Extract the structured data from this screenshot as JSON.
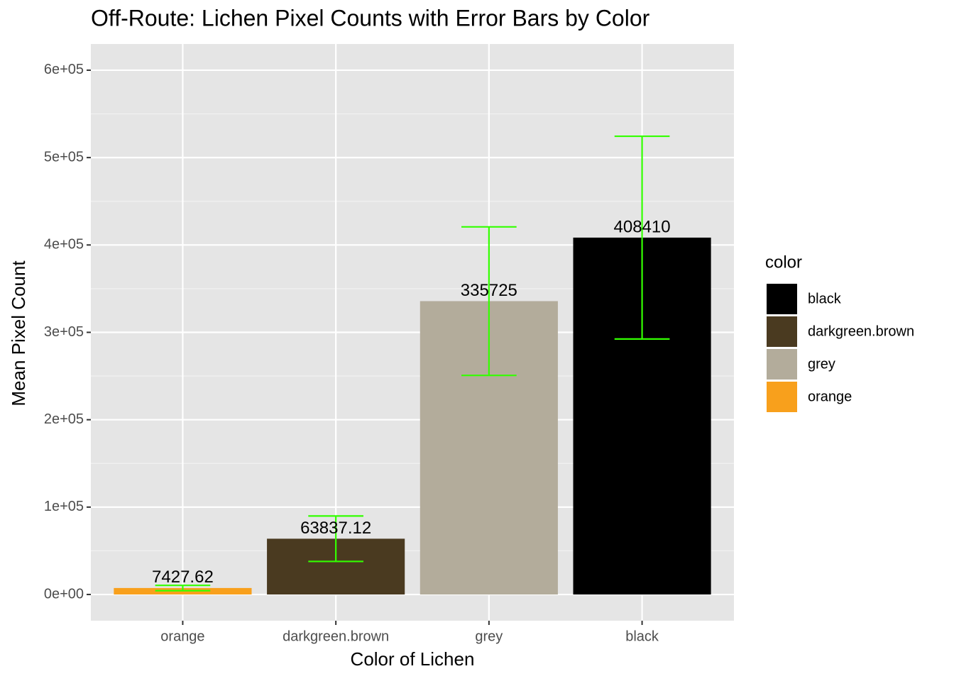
{
  "chart_data": {
    "type": "bar",
    "title": "Off-Route: Lichen Pixel Counts with Error Bars by Color",
    "x_label": "Color of Lichen",
    "y_label": "Mean Pixel Count",
    "categories": [
      "orange",
      "darkgreen.brown",
      "grey",
      "black"
    ],
    "values": [
      7427.62,
      63837.12,
      335725,
      408410
    ],
    "errors": [
      3000,
      26000,
      85000,
      116000
    ],
    "colors": [
      "#f8a01c",
      "#4a3a20",
      "#b3ac9b",
      "#000000"
    ],
    "error_color": "#33ff00",
    "ylim": [
      -30000,
      630000
    ],
    "yticks": [
      {
        "value": 0,
        "label": "0e+00"
      },
      {
        "value": 100000,
        "label": "1e+05"
      },
      {
        "value": 200000,
        "label": "2e+05"
      },
      {
        "value": 300000,
        "label": "3e+05"
      },
      {
        "value": 400000,
        "label": "4e+05"
      },
      {
        "value": 500000,
        "label": "5e+05"
      },
      {
        "value": 600000,
        "label": "6e+05"
      }
    ],
    "y_minor_ticks": [
      50000,
      150000,
      250000,
      350000,
      450000,
      550000
    ],
    "grid": true,
    "legend": {
      "title": "color",
      "labels": [
        "black",
        "darkgreen.brown",
        "grey",
        "orange"
      ],
      "colors": [
        "#000000",
        "#4a3a20",
        "#b3ac9b",
        "#f8a01c"
      ],
      "position": "right"
    }
  }
}
